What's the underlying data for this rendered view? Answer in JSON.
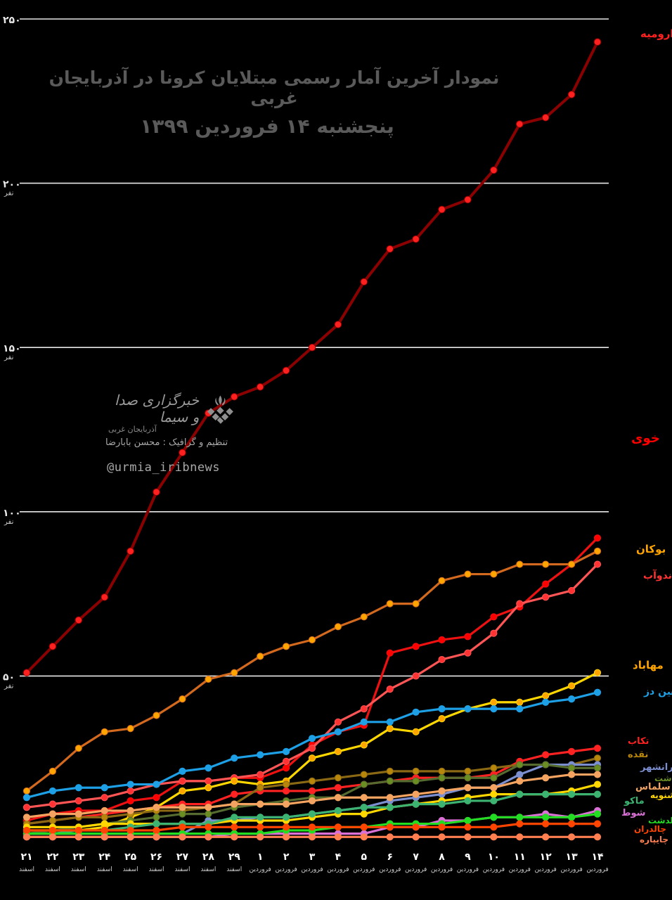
{
  "title": "نمودار آخرین آمار رسمی مبتلایان کرونا در  آذربایجان غربی",
  "subtitle": "پنجشنبه ۱۴ فروردین ۱۳۹۹",
  "watermark": {
    "brand": "خبرگزاری صدا و سیما",
    "sub": "آذربایجان غربی",
    "credit": "تنظیم و گرافیک : محسن بابارضا",
    "handle": "@urmia_iribnews"
  },
  "chart_data": {
    "type": "line",
    "ylim": [
      0,
      250
    ],
    "y_ticks": [
      {
        "value": 250,
        "label": "۲۵۰",
        "unit": ""
      },
      {
        "value": 200,
        "label": "۲۰۰",
        "unit": "نفر"
      },
      {
        "value": 150,
        "label": "۱۵۰",
        "unit": "نفر"
      },
      {
        "value": 100,
        "label": "۱۰۰",
        "unit": "نفر"
      },
      {
        "value": 50,
        "label": "۵۰",
        "unit": "نفر"
      }
    ],
    "categories": [
      {
        "day": "۲۱",
        "month": "اسفند"
      },
      {
        "day": "۲۲",
        "month": "اسفند"
      },
      {
        "day": "۲۳",
        "month": "اسفند"
      },
      {
        "day": "۲۴",
        "month": "اسفند"
      },
      {
        "day": "۲۵",
        "month": "اسفند"
      },
      {
        "day": "۲۶",
        "month": "اسفند"
      },
      {
        "day": "۲۷",
        "month": "اسفند"
      },
      {
        "day": "۲۸",
        "month": "اسفند"
      },
      {
        "day": "۲۹",
        "month": "اسفند"
      },
      {
        "day": "۱",
        "month": "فروردین"
      },
      {
        "day": "۲",
        "month": "فروردین"
      },
      {
        "day": "۳",
        "month": "فروردین"
      },
      {
        "day": "۴",
        "month": "فروردین"
      },
      {
        "day": "۵",
        "month": "فروردین"
      },
      {
        "day": "۶",
        "month": "فروردین"
      },
      {
        "day": "۷",
        "month": "فروردین"
      },
      {
        "day": "۸",
        "month": "فروردین"
      },
      {
        "day": "۹",
        "month": "فروردین"
      },
      {
        "day": "۱۰",
        "month": "فروردین"
      },
      {
        "day": "۱۱",
        "month": "فروردین"
      },
      {
        "day": "۱۲",
        "month": "فروردین"
      },
      {
        "day": "۱۳",
        "month": "فروردین"
      },
      {
        "day": "۱۴",
        "month": "فروردین"
      }
    ],
    "series": [
      {
        "name": "ارومیه",
        "color": "#8b0000",
        "marker": "#ff2020",
        "values": [
          51,
          59,
          67,
          74,
          88,
          106,
          118,
          130,
          135,
          138,
          143,
          150,
          157,
          170,
          180,
          183,
          192,
          195,
          204,
          218,
          220,
          227,
          243
        ]
      },
      {
        "name": "خوی",
        "color": "#ee1111",
        "marker": "#ff0000",
        "values": [
          6,
          8,
          9,
          9,
          12,
          13,
          18,
          18,
          19,
          19,
          22,
          29,
          33,
          35,
          57,
          59,
          61,
          62,
          68,
          71,
          78,
          84,
          92
        ]
      },
      {
        "name": "بوکان",
        "color": "#d2691e",
        "marker": "#ffa500",
        "values": [
          15,
          21,
          28,
          33,
          34,
          38,
          43,
          49,
          51,
          56,
          59,
          61,
          65,
          68,
          72,
          72,
          79,
          81,
          81,
          84,
          84,
          84,
          88
        ]
      },
      {
        "name": "میاندوآب",
        "color": "#ff5555",
        "marker": "#ff3333",
        "values": [
          10,
          11,
          12,
          13,
          15,
          17,
          18,
          18,
          19,
          20,
          24,
          28,
          36,
          40,
          46,
          50,
          55,
          57,
          63,
          72,
          74,
          76,
          84
        ]
      },
      {
        "name": "مهاباد",
        "color": "#ffd700",
        "marker": "#ffa500",
        "values": [
          3,
          3,
          3,
          4,
          7,
          10,
          15,
          16,
          18,
          17,
          18,
          25,
          27,
          29,
          34,
          33,
          37,
          40,
          42,
          42,
          44,
          47,
          51
        ]
      },
      {
        "name": "شاهین دز",
        "color": "#1ea0e6",
        "marker": "#1ea0e6",
        "values": [
          13,
          15,
          16,
          16,
          17,
          17,
          21,
          22,
          25,
          26,
          27,
          31,
          33,
          36,
          36,
          39,
          40,
          40,
          40,
          40,
          42,
          43,
          45
        ]
      },
      {
        "name": "تکاب",
        "color": "#ff2222",
        "marker": "#ff2222",
        "values": [
          5,
          6,
          7,
          8,
          9,
          10,
          11,
          11,
          14,
          15,
          15,
          15,
          16,
          17,
          18,
          19,
          19,
          19,
          20,
          24,
          26,
          27,
          28
        ]
      },
      {
        "name": "نقده",
        "color": "#8b6914",
        "marker": "#b8860b",
        "values": [
          5,
          6,
          7,
          7,
          8,
          9,
          9,
          10,
          11,
          16,
          17,
          18,
          19,
          20,
          21,
          21,
          21,
          21,
          22,
          23,
          23,
          23,
          25
        ]
      },
      {
        "name": "پیرانشهر",
        "color": "#7b8fd0",
        "marker": "#7b8fd0",
        "values": [
          2,
          2,
          2,
          2,
          2,
          2,
          2,
          6,
          6,
          7,
          7,
          8,
          9,
          10,
          12,
          13,
          14,
          16,
          16,
          20,
          23,
          23,
          23
        ]
      },
      {
        "name": "سردشت",
        "color": "#556b2f",
        "marker": "#6b8e23",
        "values": [
          2,
          3,
          4,
          5,
          6,
          7,
          8,
          8,
          10,
          11,
          12,
          13,
          13,
          17,
          18,
          18,
          19,
          19,
          19,
          23,
          23,
          22,
          22
        ]
      },
      {
        "name": "سلماس",
        "color": "#f4a460",
        "marker": "#f4a460",
        "values": [
          7,
          8,
          8,
          9,
          9,
          10,
          10,
          10,
          11,
          11,
          11,
          12,
          13,
          13,
          13,
          14,
          15,
          16,
          16,
          18,
          19,
          20,
          20
        ]
      },
      {
        "name": "اشنویه",
        "color": "#ffd700",
        "marker": "#ffd700",
        "values": [
          4,
          4,
          4,
          5,
          5,
          5,
          5,
          5,
          6,
          6,
          6,
          7,
          8,
          8,
          10,
          11,
          12,
          13,
          14,
          14,
          14,
          15,
          17
        ]
      },
      {
        "name": "ماکو",
        "color": "#3cb371",
        "marker": "#3cb371",
        "values": [
          2,
          2,
          3,
          3,
          4,
          5,
          5,
          5,
          7,
          7,
          7,
          8,
          9,
          10,
          10,
          11,
          11,
          12,
          12,
          14,
          14,
          14,
          14
        ]
      },
      {
        "name": "شوط",
        "color": "#da70d6",
        "marker": "#da70d6",
        "values": [
          1,
          1,
          1,
          1,
          1,
          1,
          1,
          1,
          2,
          2,
          2,
          2,
          2,
          2,
          4,
          4,
          6,
          6,
          7,
          7,
          8,
          7,
          9
        ]
      },
      {
        "name": "پلدشت",
        "color": "#22dd22",
        "marker": "#22dd22",
        "values": [
          2,
          2,
          2,
          2,
          2,
          2,
          2,
          2,
          2,
          2,
          3,
          3,
          4,
          4,
          5,
          5,
          5,
          6,
          7,
          7,
          7,
          7,
          8
        ]
      },
      {
        "name": "چالدران",
        "color": "#ff4500",
        "marker": "#ff4500",
        "values": [
          3,
          3,
          3,
          3,
          3,
          3,
          4,
          4,
          4,
          4,
          4,
          4,
          4,
          4,
          4,
          4,
          4,
          4,
          4,
          5,
          5,
          5,
          5
        ]
      },
      {
        "name": "چایپاره",
        "color": "#ff7f50",
        "marker": "#ff7f50",
        "values": [
          1,
          1,
          1,
          1,
          1,
          1,
          1,
          1,
          1,
          1,
          1,
          1,
          1,
          1,
          1,
          1,
          1,
          1,
          1,
          1,
          1,
          1,
          1
        ]
      }
    ]
  }
}
